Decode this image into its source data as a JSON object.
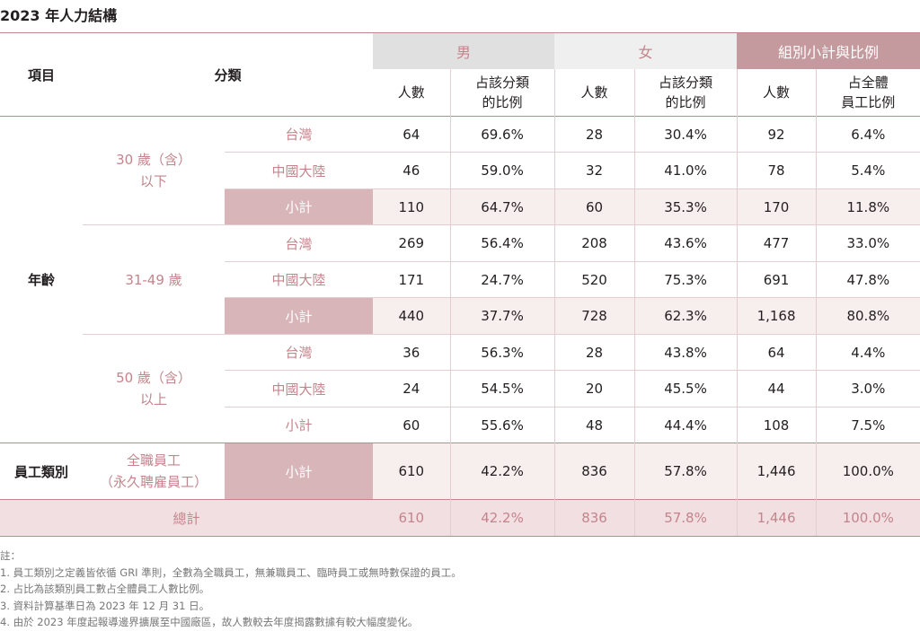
{
  "title": "2023 年人力結構",
  "header": {
    "item": "項目",
    "category": "分類",
    "male": "男",
    "female": "女",
    "subtotal_ratio": "組別小計與比例",
    "headcount": "人數",
    "ratio_in_category_line1": "占該分類",
    "ratio_in_category_line2": "的比例",
    "ratio_total_line1": "占全體",
    "ratio_total_line2": "員工比例"
  },
  "age": {
    "label": "年齡",
    "groups": [
      {
        "label_line1": "30 歲（含）",
        "label_line2": "以下",
        "rows": [
          {
            "cat": "台灣",
            "m": "64",
            "mp": "69.6%",
            "f": "28",
            "fp": "30.4%",
            "t": "92",
            "tp": "6.4%"
          },
          {
            "cat": "中國大陸",
            "m": "46",
            "mp": "59.0%",
            "f": "32",
            "fp": "41.0%",
            "t": "78",
            "tp": "5.4%"
          },
          {
            "cat": "小計",
            "m": "110",
            "mp": "64.7%",
            "f": "60",
            "fp": "35.3%",
            "t": "170",
            "tp": "11.8%"
          }
        ]
      },
      {
        "label_line1": "31-49 歲",
        "label_line2": "",
        "rows": [
          {
            "cat": "台灣",
            "m": "269",
            "mp": "56.4%",
            "f": "208",
            "fp": "43.6%",
            "t": "477",
            "tp": "33.0%"
          },
          {
            "cat": "中國大陸",
            "m": "171",
            "mp": "24.7%",
            "f": "520",
            "fp": "75.3%",
            "t": "691",
            "tp": "47.8%"
          },
          {
            "cat": "小計",
            "m": "440",
            "mp": "37.7%",
            "f": "728",
            "fp": "62.3%",
            "t": "1,168",
            "tp": "80.8%"
          }
        ]
      },
      {
        "label_line1": "50 歲（含）",
        "label_line2": "以上",
        "rows": [
          {
            "cat": "台灣",
            "m": "36",
            "mp": "56.3%",
            "f": "28",
            "fp": "43.8%",
            "t": "64",
            "tp": "4.4%"
          },
          {
            "cat": "中國大陸",
            "m": "24",
            "mp": "54.5%",
            "f": "20",
            "fp": "45.5%",
            "t": "44",
            "tp": "3.0%"
          },
          {
            "cat": "小計",
            "m": "60",
            "mp": "55.6%",
            "f": "48",
            "fp": "44.4%",
            "t": "108",
            "tp": "7.5%"
          }
        ]
      }
    ]
  },
  "employee_type": {
    "label": "員工類別",
    "group_line1": "全職員工",
    "group_line2": "（永久聘雇員工）",
    "row": {
      "cat": "小計",
      "m": "610",
      "mp": "42.2%",
      "f": "836",
      "fp": "57.8%",
      "t": "1,446",
      "tp": "100.0%"
    }
  },
  "total": {
    "label": "總計",
    "m": "610",
    "mp": "42.2%",
    "f": "836",
    "fp": "57.8%",
    "t": "1,446",
    "tp": "100.0%"
  },
  "notes": [
    "註：",
    "1. 員工類別之定義皆依循 GRI 準則，全數為全職員工，無兼職員工、臨時員工或無時數保證的員工。",
    "2. 占比為該類別員工數占全體員工人數比例。",
    "3. 資料計算基準日為 2023 年 12 月 31 日。",
    "4. 由於 2023 年度起報導邊界擴展至中國廠區，故人數較去年度揭露數據有較大幅度變化。"
  ],
  "colors": {
    "accent": "#c4848c",
    "subtotal_fill": "#d7b5b8",
    "header_male_fill": "#e0e0e0",
    "header_female_fill": "#efefef",
    "header_subtotal_fill": "#c49a9e",
    "total_fill": "#f2dfe1"
  }
}
